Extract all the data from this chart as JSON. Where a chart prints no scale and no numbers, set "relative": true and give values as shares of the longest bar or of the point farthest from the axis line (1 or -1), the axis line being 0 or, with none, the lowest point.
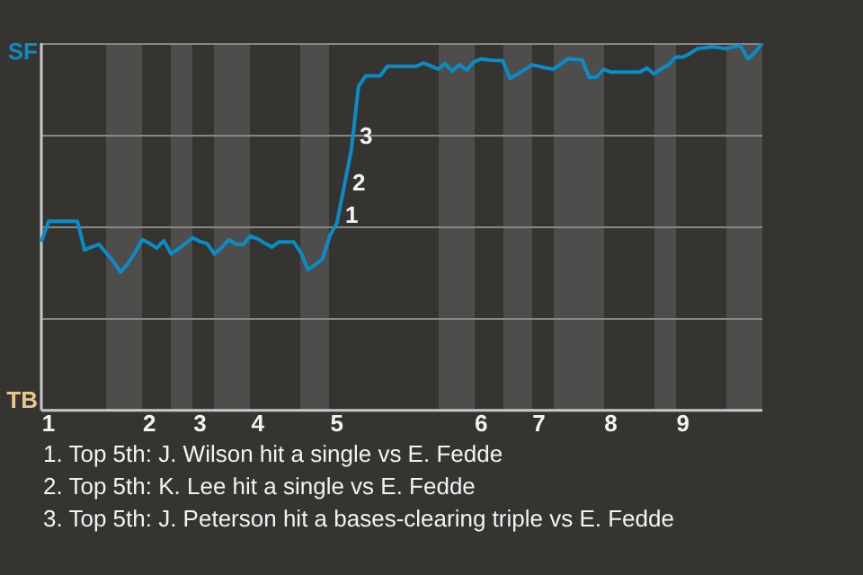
{
  "chart_data": {
    "type": "line",
    "relative": true,
    "grid": "y",
    "legend": false,
    "marker": "none",
    "line_style": "solid",
    "categories": [
      null,
      "1",
      null,
      null,
      null,
      null,
      null,
      null,
      null,
      null,
      null,
      null,
      null,
      null,
      null,
      "2",
      null,
      null,
      null,
      null,
      null,
      null,
      "3",
      null,
      null,
      null,
      null,
      null,
      null,
      null,
      "4",
      null,
      null,
      null,
      null,
      null,
      null,
      null,
      null,
      null,
      null,
      "5",
      null,
      null,
      null,
      null,
      null,
      null,
      null,
      null,
      null,
      null,
      null,
      null,
      null,
      null,
      null,
      null,
      null,
      null,
      null,
      "6",
      null,
      null,
      null,
      null,
      null,
      null,
      null,
      "7",
      null,
      null,
      null,
      null,
      null,
      null,
      null,
      null,
      null,
      "8",
      null,
      null,
      null,
      null,
      null,
      null,
      null,
      null,
      null,
      "9",
      null,
      null,
      null,
      null,
      null,
      null,
      null,
      null,
      null,
      null,
      null
    ],
    "series": [
      {
        "color": "#0a8cc8",
        "values": [
          0.459,
          0.515,
          0.515,
          0.515,
          0.515,
          0.515,
          0.437,
          0.445,
          0.452,
          0.429,
          0.405,
          0.376,
          0.4,
          0.43,
          0.465,
          0.455,
          0.442,
          0.462,
          0.426,
          0.44,
          0.455,
          0.47,
          0.46,
          0.454,
          0.426,
          0.443,
          0.465,
          0.452,
          0.452,
          0.475,
          0.467,
          0.455,
          0.445,
          0.459,
          0.459,
          0.459,
          0.429,
          0.383,
          0.397,
          0.412,
          0.475,
          0.51,
          0.61,
          0.71,
          0.883,
          0.911,
          0.911,
          0.911,
          0.937,
          0.937,
          0.937,
          0.937,
          0.937,
          0.946,
          0.938,
          0.929,
          0.944,
          0.924,
          0.941,
          0.927,
          0.949,
          0.957,
          0.954,
          0.953,
          0.952,
          0.904,
          0.915,
          0.927,
          0.941,
          0.937,
          0.932,
          0.929,
          0.942,
          0.957,
          0.956,
          0.954,
          0.907,
          0.907,
          0.929,
          0.921,
          0.921,
          0.921,
          0.921,
          0.921,
          0.932,
          0.916,
          0.93,
          0.941,
          0.962,
          0.962,
          0.972,
          0.985,
          0.987,
          0.99,
          0.988,
          0.985,
          0.99,
          0.993,
          0.957,
          0.975,
          1
        ]
      }
    ],
    "annotations": [
      "SF",
      "TB",
      "1",
      "2",
      "3",
      "1. Top 5th: J. Wilson hit a single vs E. Fedde",
      "2. Top 5th: K. Lee hit a single vs E. Fedde",
      "3. Top 5th: J. Peterson hit a bases-clearing triple vs E. Fedde"
    ]
  }
}
